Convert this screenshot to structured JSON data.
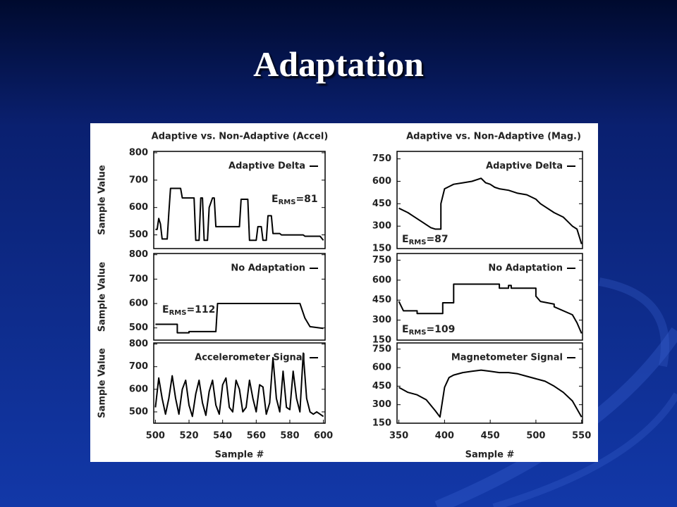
{
  "title": "Adaptation",
  "chart_data": [
    {
      "type": "line",
      "title": "Adaptive vs. Non-Adaptive (Accel)",
      "ylabel": "Sample Value",
      "xlim": [
        499,
        601
      ],
      "ylim": [
        450,
        805
      ],
      "yticks": [
        500,
        600,
        700,
        800
      ],
      "annotation": [
        "E",
        "RMS",
        "=81"
      ],
      "x": [
        500,
        501,
        502,
        503,
        504,
        505,
        507,
        508,
        509,
        510,
        515,
        516,
        523,
        524,
        526,
        527,
        528,
        529,
        531,
        532,
        534,
        535,
        536,
        537,
        550,
        551,
        555,
        556,
        560,
        561,
        563,
        564,
        566,
        567,
        569,
        570,
        574,
        575,
        588,
        589,
        598,
        600
      ],
      "series": [
        {
          "name": "Adaptive Delta",
          "color": "#000000",
          "values": [
            520,
            520,
            560,
            540,
            485,
            485,
            485,
            580,
            670,
            670,
            670,
            635,
            635,
            480,
            480,
            635,
            635,
            480,
            480,
            600,
            635,
            635,
            530,
            530,
            530,
            630,
            630,
            480,
            480,
            530,
            530,
            480,
            480,
            570,
            570,
            505,
            505,
            500,
            500,
            495,
            495,
            480
          ]
        }
      ]
    },
    {
      "type": "line",
      "ylabel": "Sample Value",
      "xlim": [
        499,
        601
      ],
      "ylim": [
        450,
        805
      ],
      "yticks": [
        500,
        600,
        700,
        800
      ],
      "annotation": [
        "E",
        "RMS",
        "=112"
      ],
      "x": [
        500,
        513,
        513,
        520,
        520,
        536,
        537,
        586,
        589,
        592,
        600
      ],
      "series": [
        {
          "name": "No Adaptation",
          "color": "#000000",
          "values": [
            515,
            515,
            480,
            480,
            485,
            485,
            600,
            600,
            540,
            505,
            498
          ]
        }
      ]
    },
    {
      "type": "line",
      "ylabel": "Sample Value",
      "xlabel": "Sample #",
      "xlim": [
        499,
        601
      ],
      "ylim": [
        450,
        805
      ],
      "yticks": [
        500,
        600,
        700,
        800
      ],
      "xticks": [
        500,
        520,
        540,
        560,
        580,
        600
      ],
      "x": [
        500,
        502,
        504,
        506,
        508,
        510,
        512,
        514,
        516,
        518,
        520,
        522,
        524,
        526,
        528,
        530,
        532,
        534,
        536,
        538,
        540,
        542,
        544,
        546,
        548,
        550,
        552,
        554,
        556,
        558,
        560,
        562,
        564,
        566,
        568,
        570,
        572,
        574,
        576,
        578,
        580,
        582,
        584,
        586,
        588,
        590,
        592,
        594,
        596,
        598,
        600
      ],
      "series": [
        {
          "name": "Accelerometer Signal",
          "color": "#000000",
          "values": [
            520,
            650,
            560,
            490,
            560,
            660,
            560,
            490,
            600,
            640,
            530,
            480,
            580,
            640,
            540,
            485,
            590,
            640,
            530,
            490,
            620,
            650,
            520,
            500,
            640,
            600,
            500,
            520,
            640,
            560,
            500,
            620,
            610,
            490,
            540,
            740,
            560,
            500,
            680,
            520,
            510,
            680,
            560,
            500,
            760,
            560,
            500,
            490,
            500,
            490,
            480
          ]
        }
      ]
    },
    {
      "type": "line",
      "title": "Adaptive vs. Non-Adaptive (Mag.)",
      "xlim": [
        348,
        551
      ],
      "ylim": [
        150,
        800
      ],
      "yticks": [
        150,
        300,
        450,
        600,
        750
      ],
      "annotation": [
        "E",
        "RMS",
        "=87"
      ],
      "x": [
        350,
        360,
        365,
        375,
        385,
        390,
        390,
        396,
        396,
        400,
        410,
        420,
        430,
        440,
        445,
        450,
        455,
        460,
        470,
        480,
        490,
        500,
        505,
        510,
        520,
        530,
        535,
        540,
        545,
        550
      ],
      "series": [
        {
          "name": "Adaptive Delta",
          "color": "#000000",
          "values": [
            420,
            390,
            370,
            330,
            290,
            280,
            280,
            280,
            450,
            550,
            580,
            590,
            600,
            620,
            590,
            580,
            560,
            550,
            540,
            520,
            510,
            480,
            450,
            430,
            390,
            360,
            330,
            300,
            280,
            180
          ]
        }
      ]
    },
    {
      "type": "line",
      "xlim": [
        348,
        551
      ],
      "ylim": [
        150,
        800
      ],
      "yticks": [
        150,
        300,
        450,
        600,
        750
      ],
      "annotation": [
        "E",
        "RMS",
        "=109"
      ],
      "x": [
        350,
        355,
        370,
        370,
        398,
        398,
        410,
        410,
        460,
        460,
        470,
        470,
        473,
        473,
        500,
        500,
        505,
        520,
        520,
        540,
        545,
        550
      ],
      "series": [
        {
          "name": "No Adaptation",
          "color": "#000000",
          "values": [
            440,
            370,
            370,
            350,
            350,
            430,
            430,
            570,
            570,
            540,
            540,
            560,
            560,
            540,
            540,
            480,
            440,
            420,
            400,
            340,
            280,
            200
          ]
        }
      ]
    },
    {
      "type": "line",
      "xlabel": "Sample #",
      "xlim": [
        348,
        551
      ],
      "ylim": [
        150,
        800
      ],
      "yticks": [
        150,
        300,
        450,
        600,
        750
      ],
      "xticks": [
        350,
        400,
        450,
        500,
        550
      ],
      "x": [
        350,
        360,
        370,
        380,
        390,
        395,
        400,
        405,
        410,
        420,
        430,
        440,
        450,
        460,
        470,
        480,
        490,
        500,
        510,
        520,
        530,
        540,
        550
      ],
      "series": [
        {
          "name": "Magnetometer Signal",
          "color": "#000000",
          "values": [
            440,
            400,
            380,
            340,
            250,
            200,
            440,
            520,
            540,
            560,
            570,
            580,
            570,
            560,
            560,
            550,
            530,
            510,
            490,
            450,
            400,
            330,
            200
          ]
        }
      ]
    }
  ]
}
